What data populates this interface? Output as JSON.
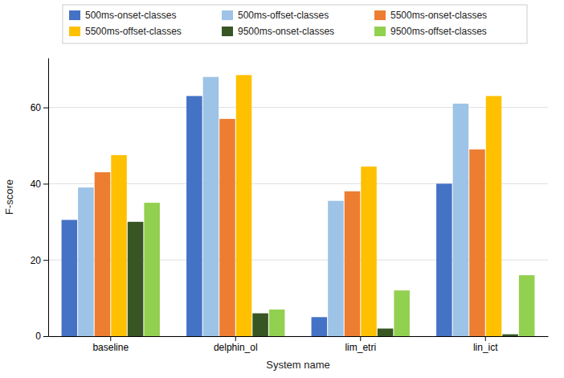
{
  "chart_data": {
    "type": "bar",
    "xlabel": "System name",
    "ylabel": "F-score",
    "categories": [
      "baseline",
      "delphin_ol",
      "lim_etri",
      "lin_ict"
    ],
    "series": [
      {
        "name": "500ms-onset-classes",
        "color": "#4472c4",
        "values": [
          30.5,
          63.0,
          5.0,
          40.0
        ]
      },
      {
        "name": "500ms-offset-classes",
        "color": "#9dc3e6",
        "values": [
          39.0,
          68.0,
          35.5,
          61.0
        ]
      },
      {
        "name": "5500ms-onset-classes",
        "color": "#ed7d31",
        "values": [
          43.0,
          57.0,
          38.0,
          49.0
        ]
      },
      {
        "name": "5500ms-offset-classes",
        "color": "#ffc000",
        "values": [
          47.5,
          68.5,
          44.5,
          63.0
        ]
      },
      {
        "name": "9500ms-onset-classes",
        "color": "#375623",
        "values": [
          30.0,
          6.0,
          2.0,
          0.5
        ]
      },
      {
        "name": "9500ms-offset-classes",
        "color": "#92d050",
        "values": [
          35.0,
          7.0,
          12.0,
          16.0
        ]
      }
    ],
    "ylim": [
      0,
      73
    ],
    "yticks": [
      0,
      20,
      40,
      60
    ],
    "grid": true,
    "legend": "top"
  }
}
